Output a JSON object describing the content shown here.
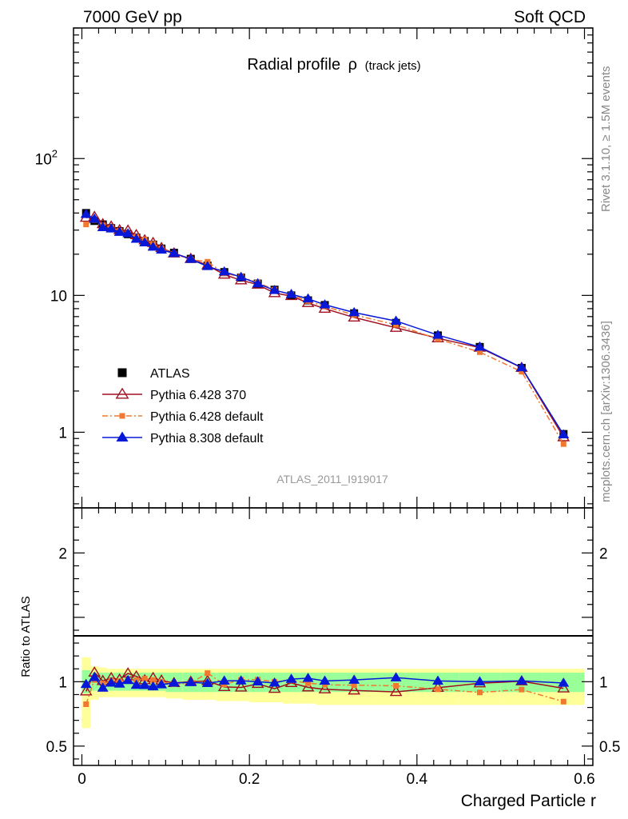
{
  "header": {
    "energy_label": "7000 GeV pp",
    "category_label": "Soft QCD",
    "side_label_top": "Rivet 3.1.10, ≥ 1.5M events",
    "side_label_bottom": "mcplots.cern.ch [arXiv:1306.3436]"
  },
  "chart_data": {
    "type": "line",
    "title": "Radial profile",
    "title_symbol": "ρ",
    "title_suffix": "(track jets)",
    "analysis_label": "ATLAS_2011_I919017",
    "xlabel": "Charged Particle r",
    "ylabel_ratio": "Ratio to ATLAS",
    "xlim": [
      -0.01,
      0.61
    ],
    "ylim": [
      0.28,
      900
    ],
    "yscale": "log",
    "ratio_ylim": [
      0.35,
      2.35
    ],
    "x_ticks": [
      {
        "v": 0,
        "label": "0"
      },
      {
        "v": 0.2,
        "label": "0.2"
      },
      {
        "v": 0.4,
        "label": "0.4"
      },
      {
        "v": 0.6,
        "label": "0.6"
      }
    ],
    "y_ticks": [
      {
        "v": 1,
        "label": "1"
      },
      {
        "v": 10,
        "label": "10"
      },
      {
        "v": 100,
        "label": "10",
        "sup": "2"
      }
    ],
    "ratio_ticks": [
      {
        "v": 0.5,
        "label": "0.5"
      },
      {
        "v": 1,
        "label": "1"
      },
      {
        "v": 2,
        "label": "2"
      }
    ],
    "x": [
      0.005,
      0.015,
      0.025,
      0.035,
      0.045,
      0.055,
      0.065,
      0.075,
      0.085,
      0.095,
      0.11,
      0.13,
      0.15,
      0.17,
      0.19,
      0.21,
      0.23,
      0.25,
      0.27,
      0.29,
      0.325,
      0.375,
      0.425,
      0.475,
      0.525,
      0.575
    ],
    "xerr_edges": [
      0,
      0.01,
      0.02,
      0.03,
      0.04,
      0.05,
      0.06,
      0.07,
      0.08,
      0.09,
      0.1,
      0.12,
      0.14,
      0.16,
      0.18,
      0.2,
      0.22,
      0.24,
      0.26,
      0.28,
      0.3,
      0.35,
      0.4,
      0.45,
      0.5,
      0.55,
      0.6
    ],
    "bands": {
      "inner_up": [
        1.09,
        1.07,
        1.07,
        1.07,
        1.07,
        1.07,
        1.07,
        1.07,
        1.07,
        1.07,
        1.07,
        1.07,
        1.07,
        1.07,
        1.07,
        1.07,
        1.07,
        1.07,
        1.07,
        1.07,
        1.07,
        1.07,
        1.07,
        1.07,
        1.07,
        1.07
      ],
      "inner_dn": [
        0.91,
        0.93,
        0.93,
        0.93,
        0.93,
        0.93,
        0.93,
        0.93,
        0.93,
        0.93,
        0.92,
        0.92,
        0.92,
        0.92,
        0.92,
        0.92,
        0.92,
        0.92,
        0.92,
        0.92,
        0.92,
        0.92,
        0.92,
        0.92,
        0.92,
        0.92
      ],
      "outer_up": [
        1.19,
        1.12,
        1.11,
        1.1,
        1.1,
        1.1,
        1.1,
        1.1,
        1.1,
        1.1,
        1.1,
        1.1,
        1.1,
        1.1,
        1.1,
        1.1,
        1.1,
        1.1,
        1.1,
        1.1,
        1.1,
        1.1,
        1.1,
        1.1,
        1.1,
        1.1
      ],
      "outer_dn": [
        0.64,
        0.86,
        0.88,
        0.88,
        0.88,
        0.88,
        0.88,
        0.88,
        0.88,
        0.88,
        0.87,
        0.86,
        0.86,
        0.85,
        0.85,
        0.84,
        0.84,
        0.83,
        0.83,
        0.82,
        0.82,
        0.82,
        0.82,
        0.82,
        0.82,
        0.82
      ]
    },
    "series": [
      {
        "name": "ATLAS",
        "color": "#000000",
        "marker": "square",
        "line": "none",
        "values": [
          40,
          35,
          33,
          31,
          29.5,
          28,
          26.5,
          25,
          23.5,
          22,
          20.5,
          18.5,
          16.5,
          14.8,
          13.5,
          12.2,
          11.0,
          10.0,
          9.2,
          8.5,
          7.4,
          6.3,
          5.1,
          4.2,
          2.95,
          0.97
        ]
      },
      {
        "name": "Pythia 6.428 370",
        "color": "#a01020",
        "marker": "open-triangle",
        "line": "solid",
        "values": [
          37.0,
          37.5,
          33.2,
          31.9,
          30.0,
          29.8,
          27.6,
          25.3,
          24.2,
          22.2,
          20.3,
          18.5,
          16.6,
          14.2,
          12.9,
          12.0,
          10.4,
          9.9,
          8.8,
          8.0,
          6.9,
          5.8,
          4.86,
          4.15,
          2.96,
          0.92
        ]
      },
      {
        "name": "Pythia 6.428 default",
        "color": "#f07830",
        "marker": "square",
        "line": "dashdot",
        "values": [
          33.0,
          35.5,
          32.5,
          31.2,
          29.6,
          28.2,
          26.8,
          25.6,
          23.8,
          22.0,
          20.1,
          18.3,
          17.6,
          14.5,
          13.7,
          12.4,
          11.0,
          10.1,
          9.1,
          8.3,
          7.2,
          6.1,
          4.8,
          3.85,
          2.77,
          0.82
        ]
      },
      {
        "name": "Pythia 8.308 default",
        "color": "#0818d8",
        "marker": "filled-triangle",
        "line": "solid",
        "values": [
          39.2,
          36.2,
          31.4,
          30.7,
          29.0,
          28.3,
          25.8,
          24.3,
          22.6,
          21.5,
          20.3,
          18.4,
          16.3,
          14.9,
          13.6,
          12.2,
          10.9,
          10.2,
          9.45,
          8.55,
          7.5,
          6.5,
          5.13,
          4.2,
          2.97,
          0.96
        ]
      }
    ],
    "legend_position": "lower-left"
  }
}
